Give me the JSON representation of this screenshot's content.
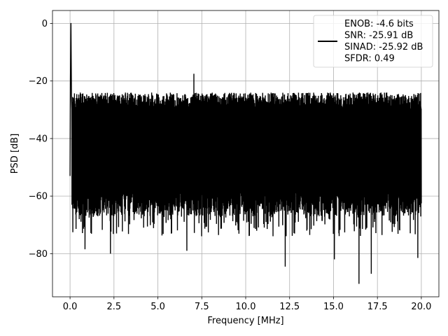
{
  "chart_data": {
    "type": "line",
    "xlabel": "Frequency [MHz]",
    "ylabel": "PSD [dB]",
    "xlim": [
      -1.0,
      21.0
    ],
    "ylim": [
      -95.0,
      4.5
    ],
    "xticks": [
      0.0,
      2.5,
      5.0,
      7.5,
      10.0,
      12.5,
      15.0,
      17.5,
      20.0
    ],
    "xtick_labels": [
      "0.0",
      "2.5",
      "5.0",
      "7.5",
      "10.0",
      "12.5",
      "15.0",
      "17.5",
      "20.0"
    ],
    "yticks": [
      0,
      -20,
      -40,
      -60,
      -80
    ],
    "ytick_labels": [
      "0",
      "−20",
      "−40",
      "−60",
      "−80"
    ],
    "grid": true,
    "legend_position": "top-right",
    "legend": [
      "ENOB: -4.6 bits",
      "SNR: -25.91 dB",
      "SINAD: -25.92 dB",
      "SFDR: 0.49"
    ],
    "series": [
      {
        "color": "#000000",
        "peak": {
          "x": 0.05,
          "y": 0.0
        },
        "noise_band": {
          "x_start": 0.0,
          "x_end": 20.0,
          "upper_dB": -23,
          "lower_dB": -65
        },
        "spurs": [
          {
            "x": 7.05,
            "y": -17.5
          },
          {
            "x": 16.45,
            "y": -90.5
          },
          {
            "x": 17.15,
            "y": -87.0
          },
          {
            "x": 15.05,
            "y": -82.0
          },
          {
            "x": 12.25,
            "y": -84.5
          },
          {
            "x": 19.8,
            "y": -81.5
          },
          {
            "x": 2.3,
            "y": -80.0
          },
          {
            "x": 6.65,
            "y": -79.0
          },
          {
            "x": 0.85,
            "y": -78.5
          }
        ]
      }
    ]
  }
}
